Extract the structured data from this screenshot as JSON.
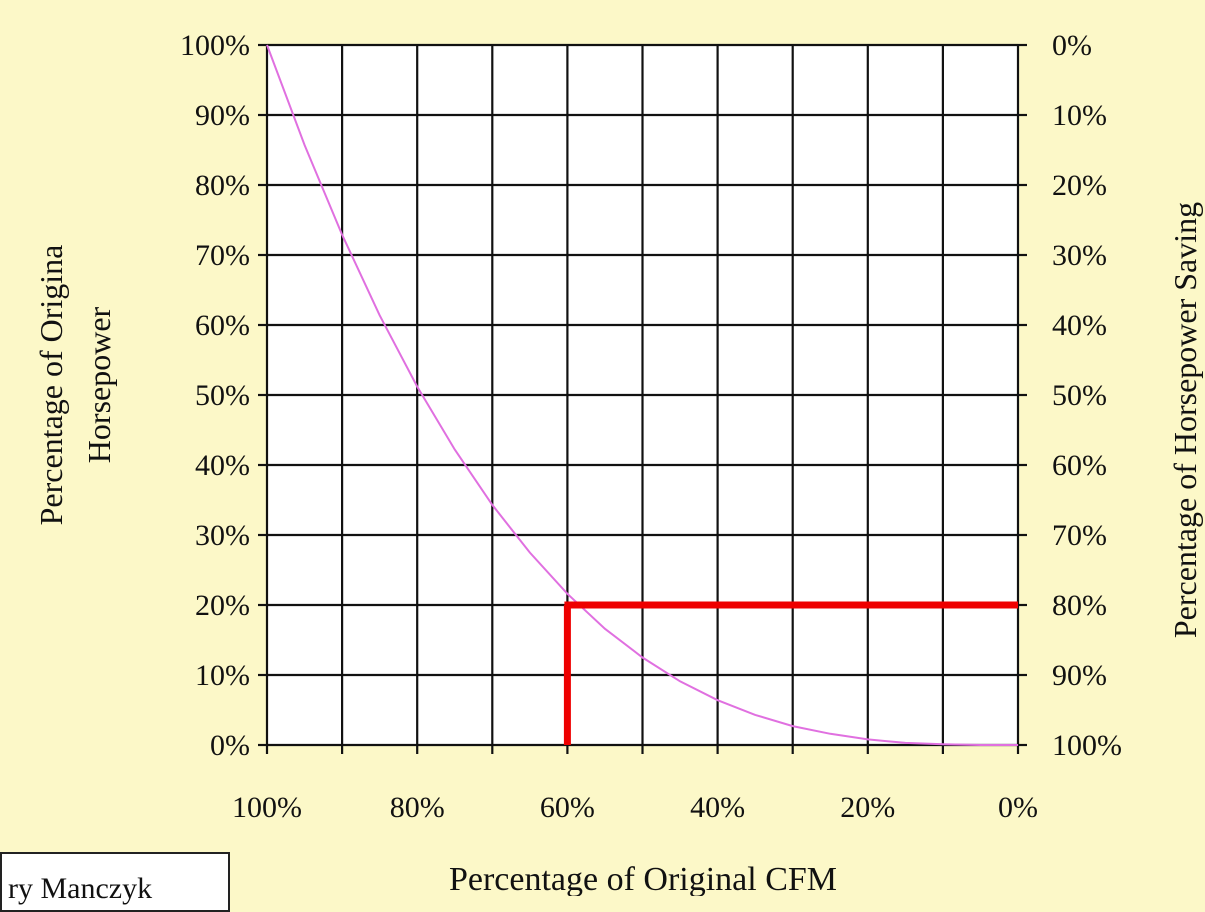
{
  "chart_data": {
    "type": "line",
    "title": "",
    "xlabel": "Percentage of Original CFM",
    "ylabel_lines": [
      "Percentage of Origina",
      "Horsepower"
    ],
    "ylabel_right": "Percentage of Horsepower Saving",
    "x_ticks": [
      "100%",
      "80%",
      "60%",
      "40%",
      "20%",
      "0%"
    ],
    "y_ticks_left": [
      "100%",
      "90%",
      "80%",
      "70%",
      "60%",
      "50%",
      "40%",
      "30%",
      "20%",
      "10%",
      "0%"
    ],
    "y_ticks_right": [
      "0%",
      "10%",
      "20%",
      "30%",
      "40%",
      "50%",
      "60%",
      "70%",
      "80%",
      "90%",
      "100%"
    ],
    "xlim": [
      100,
      0
    ],
    "ylim": [
      0,
      100
    ],
    "grid": true,
    "series": [
      {
        "color": "#e070e0",
        "x": [
          100,
          95,
          90,
          85,
          80,
          75,
          70,
          65,
          60,
          55,
          50,
          45,
          40,
          35,
          30,
          25,
          20,
          15,
          10,
          5,
          0
        ],
        "y": [
          100,
          85.7,
          72.9,
          61.4,
          51.2,
          42.2,
          34.3,
          27.5,
          21.6,
          16.6,
          12.5,
          9.1,
          6.4,
          4.3,
          2.7,
          1.6,
          0.8,
          0.3,
          0.1,
          0.0,
          0.0
        ]
      }
    ],
    "highlight": {
      "color": "#ee0000",
      "x": 60,
      "y": 20
    }
  },
  "footer": {
    "name_box_text": "ry Manczyk"
  }
}
